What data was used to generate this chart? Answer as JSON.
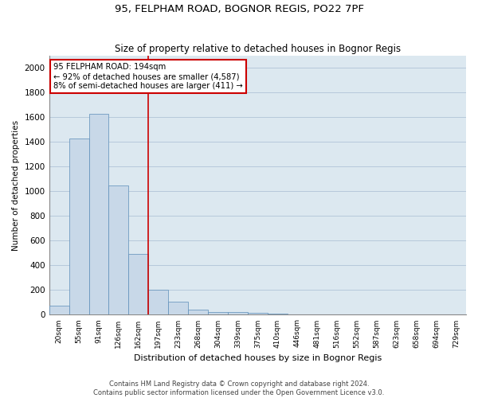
{
  "title1": "95, FELPHAM ROAD, BOGNOR REGIS, PO22 7PF",
  "title2": "Size of property relative to detached houses in Bognor Regis",
  "xlabel": "Distribution of detached houses by size in Bognor Regis",
  "ylabel": "Number of detached properties",
  "footnote1": "Contains HM Land Registry data © Crown copyright and database right 2024.",
  "footnote2": "Contains public sector information licensed under the Open Government Licence v3.0.",
  "categories": [
    "20sqm",
    "55sqm",
    "91sqm",
    "126sqm",
    "162sqm",
    "197sqm",
    "233sqm",
    "268sqm",
    "304sqm",
    "339sqm",
    "375sqm",
    "410sqm",
    "446sqm",
    "481sqm",
    "516sqm",
    "552sqm",
    "587sqm",
    "623sqm",
    "658sqm",
    "694sqm",
    "729sqm"
  ],
  "values": [
    75,
    1425,
    1625,
    1050,
    490,
    205,
    105,
    40,
    25,
    20,
    15,
    10,
    5,
    3,
    2,
    2,
    1,
    1,
    1,
    1,
    0
  ],
  "bar_color": "#c8d8e8",
  "bar_edge_color": "#5b8db8",
  "ref_line_color": "#cc0000",
  "annotation_text": "95 FELPHAM ROAD: 194sqm\n← 92% of detached houses are smaller (4,587)\n8% of semi-detached houses are larger (411) →",
  "annotation_box_color": "#cc0000",
  "ylim": [
    0,
    2100
  ],
  "yticks": [
    0,
    200,
    400,
    600,
    800,
    1000,
    1200,
    1400,
    1600,
    1800,
    2000
  ],
  "grid_color": "#b0c4d8",
  "background_color": "#dce8f0"
}
